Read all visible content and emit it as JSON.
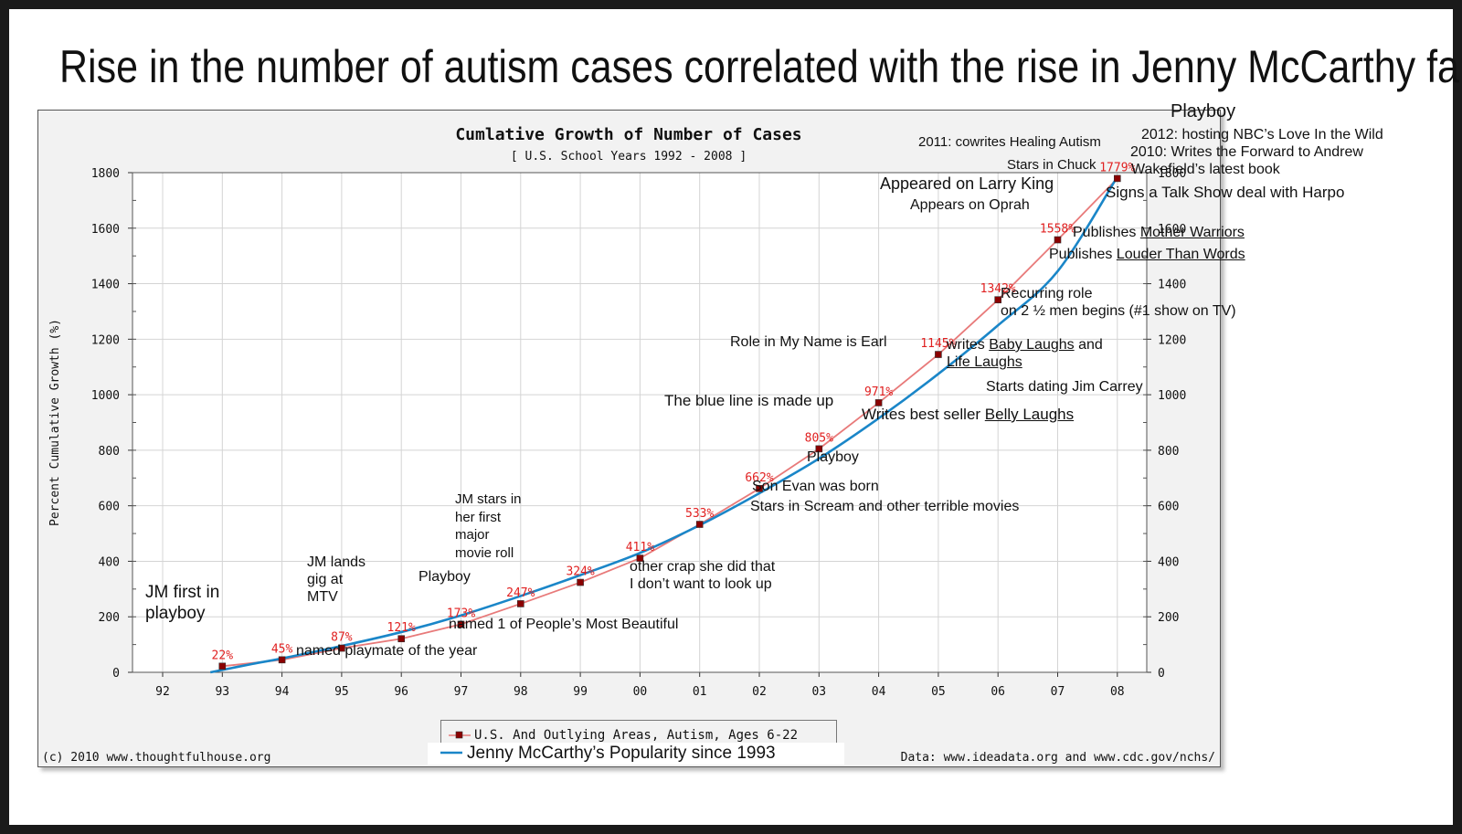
{
  "title": "Rise in the number of autism cases correlated with the rise in Jenny McCarthy fame",
  "chart_data": {
    "type": "line",
    "title": "Cumlative Growth of Number of Cases",
    "subtitle": "[ U.S. School Years 1992 - 2008 ]",
    "ylabel": "Percent Cumulative Growth (%)",
    "xlabel": "",
    "categories": [
      "92",
      "93",
      "94",
      "95",
      "96",
      "97",
      "98",
      "99",
      "00",
      "01",
      "02",
      "03",
      "04",
      "05",
      "06",
      "07",
      "08"
    ],
    "ylim": [
      0,
      1800
    ],
    "yticks": [
      0,
      200,
      400,
      600,
      800,
      1000,
      1200,
      1400,
      1600,
      1800
    ],
    "grid": true,
    "series": [
      {
        "name": "U.S. And Outlying Areas, Autism, Ages 6-22",
        "color": "#e87a7a",
        "marker_color": "#8b0000",
        "x": [
          "93",
          "94",
          "95",
          "96",
          "97",
          "98",
          "99",
          "00",
          "01",
          "02",
          "03",
          "04",
          "05",
          "06",
          "07",
          "08"
        ],
        "values": [
          22,
          45,
          87,
          121,
          173,
          247,
          324,
          411,
          533,
          662,
          805,
          971,
          1145,
          1342,
          1558,
          1779
        ],
        "labels": [
          "22%",
          "45%",
          "87%",
          "121%",
          "173%",
          "247%",
          "324%",
          "411%",
          "533%",
          "662%",
          "805%",
          "971%",
          "1145%",
          "1342%",
          "1558%",
          "1779%"
        ]
      },
      {
        "name": "Jenny McCarthy’s Popularity since 1993",
        "color": "#1a86c8",
        "x": [
          "92.8",
          "93.5",
          "94",
          "95",
          "96",
          "97",
          "98",
          "99",
          "00",
          "01",
          "02",
          "03",
          "04",
          "05",
          "06",
          "07",
          "08"
        ],
        "values": [
          0,
          30,
          50,
          95,
          145,
          205,
          275,
          350,
          430,
          530,
          645,
          770,
          915,
          1075,
          1250,
          1445,
          1785
        ]
      }
    ],
    "legend_position": "bottom-center",
    "footer_left": "(c) 2010 www.thoughtfulhouse.org",
    "footer_right": "Data: www.ideadata.org and www.cdc.gov/nchs/"
  },
  "annotations": {
    "a1": "JM first in",
    "a1b": "playboy",
    "a2": "named playmate of the year",
    "a3a": "JM lands",
    "a3b": "gig at",
    "a3c": "MTV",
    "a4": "Playboy",
    "a5": "named 1 of People’s Most Beautiful",
    "a6a": "JM stars in",
    "a6b": "her first",
    "a6c": "major",
    "a6d": "movie roll",
    "a7a": "other crap she did that",
    "a7b": "I don’t want to look up",
    "a8": "Son Evan was born",
    "a9": "Stars in Scream and other terrible movies",
    "a10": "Playboy",
    "a11": "The blue line is made up",
    "a12a": "Writes best seller ",
    "a12b": "Belly Laughs",
    "a13": "Role in My Name is Earl",
    "a14a": "writes ",
    "a14b": "Baby Laughs",
    "a14c": " and",
    "a14d": "Life Laughs",
    "a15": "Starts dating Jim Carrey",
    "a16a": "Recurring role",
    "a16b": "on 2 ½ men begins (#1 show on TV)",
    "a17a": "Publishes ",
    "a17b": "Mother Warriors",
    "a18a": "Publishes ",
    "a18b": "Louder Than Words",
    "a19": "Appeared on Larry King",
    "a20": "Appears on Oprah",
    "a21": "2011: cowrites Healing Autism",
    "a22": "Stars in Chuck",
    "a23": "Playboy",
    "a24": "2012: hosting NBC’s Love In the Wild",
    "a25a": "2010: Writes the Forward to Andrew",
    "a25b": "Wakefield’s latest book",
    "a26": "Signs a Talk Show deal with Harpo"
  }
}
